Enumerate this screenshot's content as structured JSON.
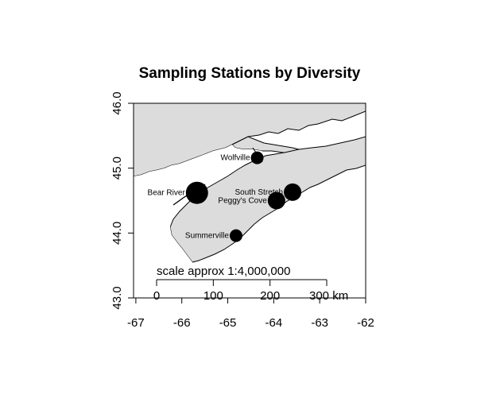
{
  "title": "Sampling Stations by Diversity",
  "x_axis": {
    "ticks": [
      {
        "value": -67,
        "label": "-67"
      },
      {
        "value": -66,
        "label": "-66"
      },
      {
        "value": -65,
        "label": "-65"
      },
      {
        "value": -64,
        "label": "-64"
      },
      {
        "value": -63,
        "label": "-63"
      },
      {
        "value": -62,
        "label": "-62"
      }
    ],
    "range": [
      -67.05,
      -62.0
    ]
  },
  "y_axis": {
    "ticks": [
      {
        "value": 43.0,
        "label": "43.0"
      },
      {
        "value": 44.0,
        "label": "44.0"
      },
      {
        "value": 45.0,
        "label": "45.0"
      },
      {
        "value": 46.0,
        "label": "46.0"
      }
    ],
    "range": [
      43.0,
      46.0
    ]
  },
  "stations": [
    {
      "name": "Wolfville",
      "lon": -64.36,
      "lat": 45.16,
      "size": "small"
    },
    {
      "name": "Bear River",
      "lon": -65.67,
      "lat": 44.62,
      "size": "large"
    },
    {
      "name": "South Stretch",
      "lon": -63.59,
      "lat": 44.63,
      "size": "medium"
    },
    {
      "name": "Peggy's Cove",
      "lon": -63.94,
      "lat": 44.5,
      "size": "medium"
    },
    {
      "name": "Summerville",
      "lon": -64.82,
      "lat": 43.96,
      "size": "small"
    }
  ],
  "scale_bar": {
    "label": "scale approx 1:4,000,000",
    "ticks": [
      {
        "km": 0,
        "label": "0"
      },
      {
        "km": 100,
        "label": "100"
      },
      {
        "km": 200,
        "label": "200"
      },
      {
        "km": 300,
        "label": "300 km"
      }
    ]
  },
  "colors": {
    "land": "#dcdcdc",
    "water": "#ffffff",
    "marker": "#000000"
  }
}
